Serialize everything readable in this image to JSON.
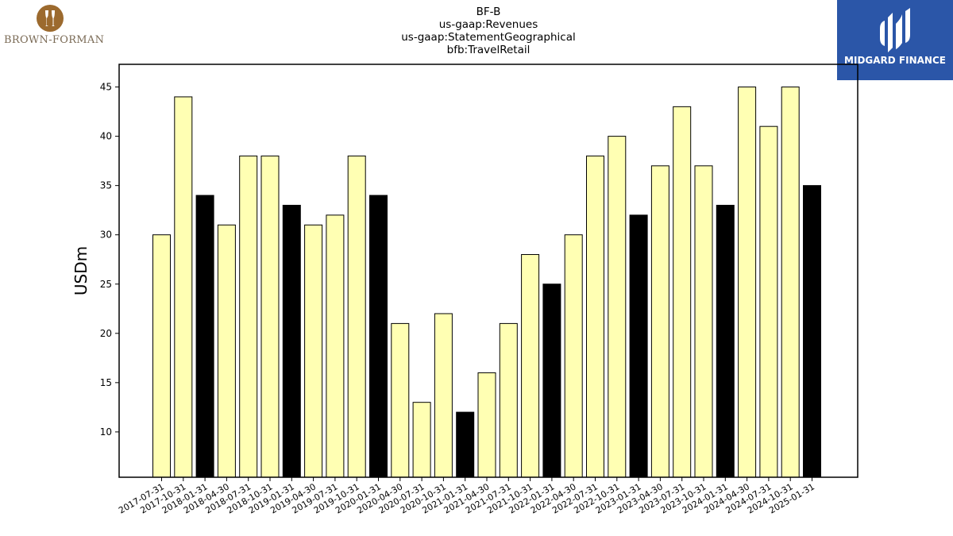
{
  "brand_left": {
    "wordmark": "BROWN-FORMAN",
    "emblem_color": "#9c6a2e"
  },
  "brand_right": {
    "wordmark": "MIDGARD FINANCE",
    "background": "#2b56a8"
  },
  "colors": {
    "bar_default": "#ffffb3",
    "bar_highlight": "#000000",
    "bar_edge": "#000000"
  },
  "chart_data": {
    "type": "bar",
    "title_lines": [
      "BF-B",
      "us-gaap:Revenues",
      "us-gaap:StatementGeographical",
      "bfb:TravelRetail"
    ],
    "xlabel": "",
    "ylabel": "USDm",
    "ylim": [
      5.4,
      47.3
    ],
    "yticks": [
      10,
      15,
      20,
      25,
      30,
      35,
      40,
      45
    ],
    "grid": false,
    "categories": [
      "2017-07-31",
      "2017-10-31",
      "2018-01-31",
      "2018-04-30",
      "2018-07-31",
      "2018-10-31",
      "2019-01-31",
      "2019-04-30",
      "2019-07-31",
      "2019-10-31",
      "2020-01-31",
      "2020-04-30",
      "2020-07-31",
      "2020-10-31",
      "2021-01-31",
      "2021-04-30",
      "2021-07-31",
      "2021-10-31",
      "2022-01-31",
      "2022-04-30",
      "2022-07-31",
      "2022-10-31",
      "2023-01-31",
      "2023-04-30",
      "2023-07-31",
      "2023-10-31",
      "2024-01-31",
      "2024-04-30",
      "2024-07-31",
      "2024-10-31",
      "2025-01-31"
    ],
    "values": [
      30,
      44,
      34,
      31,
      38,
      38,
      33,
      31,
      32,
      38,
      34,
      21,
      13,
      22,
      12,
      16,
      21,
      28,
      25,
      30,
      38,
      40,
      32,
      37,
      43,
      37,
      33,
      45,
      41,
      45,
      35
    ],
    "highlight_months": [
      "01"
    ]
  }
}
